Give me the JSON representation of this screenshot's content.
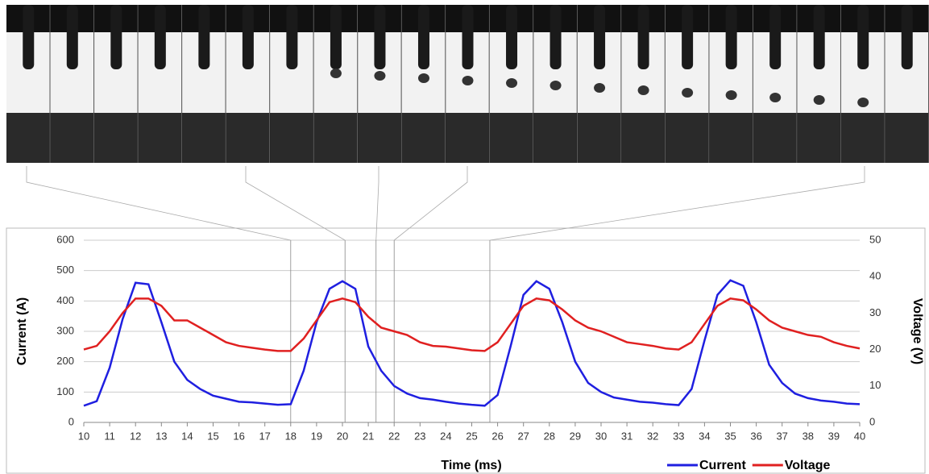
{
  "chart_data": {
    "type": "line",
    "x_label": "Time (ms)",
    "y_label": "Current (A)",
    "y2_label": "Voltage (V)",
    "x": [
      10,
      10.5,
      11,
      11.5,
      12,
      12.5,
      13,
      13.5,
      14,
      14.5,
      15,
      15.5,
      16,
      16.5,
      17,
      17.5,
      18,
      18.5,
      19,
      19.5,
      20,
      20.5,
      21,
      21.5,
      22,
      22.5,
      23,
      23.5,
      24,
      24.5,
      25,
      25.5,
      26,
      26.5,
      27,
      27.5,
      28,
      28.5,
      29,
      29.5,
      30,
      30.5,
      31,
      31.5,
      32,
      32.5,
      33,
      33.5,
      34,
      34.5,
      35,
      35.5,
      36,
      36.5,
      37,
      37.5,
      38,
      38.5,
      39,
      39.5,
      40
    ],
    "series": [
      {
        "name": "Current",
        "color": "#1f1fe0",
        "values": [
          55,
          70,
          180,
          340,
          460,
          455,
          330,
          200,
          140,
          110,
          88,
          78,
          68,
          66,
          62,
          58,
          60,
          170,
          330,
          440,
          465,
          440,
          250,
          170,
          120,
          95,
          80,
          75,
          68,
          62,
          58,
          55,
          90,
          250,
          420,
          465,
          440,
          330,
          200,
          130,
          100,
          82,
          75,
          68,
          65,
          60,
          57,
          110,
          270,
          420,
          468,
          450,
          330,
          190,
          130,
          95,
          80,
          72,
          68,
          62,
          60
        ]
      },
      {
        "name": "Voltage",
        "color": "#e02020",
        "axis": "y2",
        "values": [
          20,
          21,
          25,
          30,
          34,
          34,
          32,
          28,
          28,
          26,
          24,
          22,
          21,
          20.5,
          20,
          19.6,
          19.6,
          23,
          28,
          33,
          34,
          33,
          29,
          26,
          25,
          24,
          22,
          21,
          20.8,
          20.3,
          19.8,
          19.6,
          22,
          27,
          32,
          34,
          33.5,
          31,
          28,
          26,
          25,
          23.5,
          22,
          21.5,
          21,
          20.3,
          20,
          22,
          27,
          32,
          34,
          33.5,
          31,
          28,
          26,
          25,
          24,
          23.5,
          22,
          21,
          20.3
        ]
      }
    ],
    "xlim": [
      10,
      40
    ],
    "xticks": [
      10,
      11,
      12,
      13,
      14,
      15,
      16,
      17,
      18,
      19,
      20,
      21,
      22,
      23,
      24,
      25,
      26,
      27,
      28,
      29,
      30,
      31,
      32,
      33,
      34,
      35,
      36,
      37,
      38,
      39,
      40
    ],
    "ylim": [
      0,
      600
    ],
    "yticks": [
      0,
      100,
      200,
      300,
      400,
      500,
      600
    ],
    "y2lim": [
      0,
      50
    ],
    "y2ticks": [
      0,
      10,
      20,
      30,
      40,
      50
    ],
    "reference_lines_x": [
      18,
      20.1,
      21.3,
      22,
      25.7
    ],
    "grid": true,
    "legend": "bottom-right"
  }
}
